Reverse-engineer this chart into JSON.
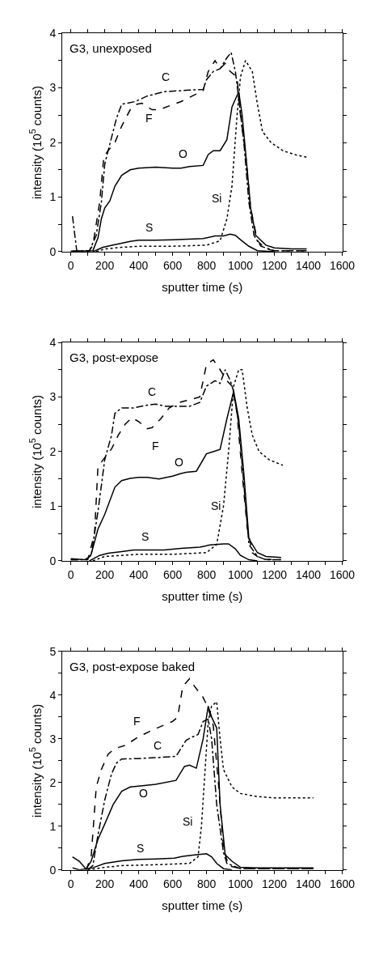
{
  "chart_data": [
    {
      "type": "line",
      "xlabel": "sputter time (s)",
      "ylabel": "intensity (10$^{5}$ counts)",
      "xlim": [
        -50,
        1600
      ],
      "ylim": [
        0,
        4
      ],
      "xticks": [
        0,
        {
          "value": 100,
          "label": null
        },
        200,
        {
          "value": 300,
          "label": null
        },
        400,
        {
          "value": 500,
          "label": null
        },
        600,
        {
          "value": 700,
          "label": null
        },
        800,
        {
          "value": 900,
          "label": null
        },
        1000,
        {
          "value": 1100,
          "label": null
        },
        1200,
        {
          "value": 1300,
          "label": null
        },
        1400,
        {
          "value": 1500,
          "label": null
        },
        1600
      ],
      "yticks": [
        0,
        {
          "value": 0.5,
          "label": null
        },
        1,
        {
          "value": 1.5,
          "label": null
        },
        2,
        {
          "value": 2.5,
          "label": null
        },
        3,
        {
          "value": 3.5,
          "label": null
        },
        4
      ],
      "legend": false,
      "marker": "none",
      "annotations": [
        "G3, unexposed"
      ],
      "series": [
        {
          "name": "O",
          "color": "#000000",
          "line_style": "solid",
          "x": [
            0,
            130,
            160,
            180,
            200,
            230,
            260,
            300,
            350,
            400,
            500,
            600,
            650,
            700,
            780,
            810,
            840,
            880,
            920,
            950,
            990,
            1010,
            1040,
            1060,
            1090,
            1150,
            1200,
            1300,
            1390
          ],
          "values": [
            0.01,
            0.02,
            0.25,
            0.6,
            0.8,
            0.93,
            1.2,
            1.4,
            1.5,
            1.53,
            1.55,
            1.53,
            1.53,
            1.56,
            1.58,
            1.78,
            1.85,
            1.85,
            2.05,
            2.65,
            2.93,
            2.5,
            1.5,
            0.8,
            0.3,
            0.12,
            0.07,
            0.05,
            0.05
          ]
        },
        {
          "name": "C",
          "color": "#000000",
          "line_style": "dashdot",
          "x": [
            10,
            35,
            110,
            150,
            180,
            200,
            220,
            270,
            300,
            380,
            450,
            550,
            700,
            780,
            800,
            840,
            880,
            920,
            945,
            970,
            990,
            1020,
            1050,
            1080,
            1120,
            1200,
            1390
          ],
          "values": [
            0.65,
            0.02,
            0.02,
            0.3,
            0.9,
            1.6,
            1.85,
            2.45,
            2.7,
            2.75,
            2.85,
            2.93,
            2.96,
            2.97,
            3.15,
            3.3,
            3.35,
            3.55,
            3.65,
            3.3,
            2.8,
            2.0,
            0.9,
            0.3,
            0.1,
            0.02,
            0.02
          ]
        },
        {
          "name": "F",
          "color": "#000000",
          "line_style": "dashed",
          "x": [
            10,
            110,
            130,
            170,
            195,
            220,
            260,
            300,
            350,
            390,
            420,
            450,
            480,
            520,
            650,
            780,
            810,
            850,
            880,
            910,
            940,
            980,
            1000,
            1030,
            1060,
            1100,
            1150,
            1200,
            1390
          ],
          "values": [
            0.01,
            0.02,
            0.12,
            0.9,
            1.75,
            1.85,
            2.0,
            2.3,
            2.6,
            2.7,
            2.72,
            2.65,
            2.6,
            2.6,
            2.75,
            2.95,
            3.3,
            3.5,
            3.35,
            3.45,
            3.3,
            3.2,
            2.5,
            1.8,
            0.8,
            0.2,
            0.05,
            0.02,
            0.02
          ]
        },
        {
          "name": "Si",
          "color": "#000000",
          "line_style": "dotted",
          "x": [
            150,
            200,
            300,
            400,
            600,
            800,
            880,
            920,
            950,
            980,
            1000,
            1030,
            1070,
            1100,
            1130,
            1180,
            1250,
            1330,
            1390
          ],
          "values": [
            0.0,
            0.05,
            0.08,
            0.1,
            0.1,
            0.12,
            0.2,
            0.6,
            1.2,
            2.5,
            3.2,
            3.5,
            3.3,
            2.7,
            2.2,
            2.0,
            1.85,
            1.77,
            1.73
          ]
        },
        {
          "name": "S",
          "color": "#000000",
          "line_style": "solid",
          "x": [
            130,
            190,
            260,
            350,
            400,
            500,
            600,
            780,
            850,
            900,
            940,
            970,
            1000,
            1050,
            1100,
            1200
          ],
          "values": [
            0.0,
            0.08,
            0.13,
            0.19,
            0.21,
            0.21,
            0.22,
            0.24,
            0.29,
            0.29,
            0.32,
            0.3,
            0.22,
            0.1,
            0.02,
            0.0
          ]
        }
      ]
    },
    {
      "type": "line",
      "xlabel": "sputter time (s)",
      "ylabel": "intensity (10$^{5}$ counts)",
      "xlim": [
        -50,
        1600
      ],
      "ylim": [
        0,
        4
      ],
      "xticks": [
        0,
        {
          "value": 100,
          "label": null
        },
        200,
        {
          "value": 300,
          "label": null
        },
        400,
        {
          "value": 500,
          "label": null
        },
        600,
        {
          "value": 700,
          "label": null
        },
        800,
        {
          "value": 900,
          "label": null
        },
        1000,
        {
          "value": 1100,
          "label": null
        },
        1200,
        {
          "value": 1300,
          "label": null
        },
        1400,
        {
          "value": 1500,
          "label": null
        },
        1600
      ],
      "yticks": [
        0,
        {
          "value": 0.5,
          "label": null
        },
        1,
        {
          "value": 1.5,
          "label": null
        },
        2,
        {
          "value": 2.5,
          "label": null
        },
        3,
        {
          "value": 3.5,
          "label": null
        },
        4
      ],
      "legend": false,
      "marker": "none",
      "annotations": [
        "G3, post-expose"
      ],
      "series": [
        {
          "name": "O",
          "color": "#000000",
          "line_style": "solid",
          "x": [
            0,
            80,
            100,
            120,
            160,
            200,
            260,
            300,
            350,
            400,
            450,
            520,
            600,
            650,
            680,
            740,
            800,
            840,
            880,
            920,
            960,
            990,
            1020,
            1050,
            1100,
            1150,
            1240
          ],
          "values": [
            0.04,
            0.02,
            0.05,
            0.12,
            0.58,
            0.85,
            1.35,
            1.47,
            1.51,
            1.53,
            1.53,
            1.5,
            1.55,
            1.6,
            1.62,
            1.64,
            1.96,
            2.0,
            2.04,
            2.6,
            3.1,
            2.6,
            1.6,
            0.4,
            0.15,
            0.08,
            0.06
          ]
        },
        {
          "name": "C",
          "color": "#000000",
          "line_style": "dashdot",
          "x": [
            0,
            90,
            120,
            160,
            200,
            240,
            260,
            300,
            370,
            450,
            500,
            560,
            600,
            700,
            760,
            800,
            850,
            880,
            910,
            940,
            960,
            990,
            1020,
            1050,
            1100,
            1150,
            1240
          ],
          "values": [
            0.02,
            0.02,
            0.1,
            0.9,
            1.85,
            2.3,
            2.7,
            2.8,
            2.8,
            2.85,
            2.87,
            2.83,
            2.83,
            2.83,
            2.9,
            3.2,
            3.3,
            3.25,
            3.5,
            3.3,
            3.1,
            2.5,
            1.4,
            0.3,
            0.08,
            0.02,
            0.02
          ]
        },
        {
          "name": "F",
          "color": "#000000",
          "line_style": "dashed",
          "x": [
            0,
            100,
            140,
            160,
            190,
            240,
            280,
            320,
            360,
            400,
            450,
            480,
            530,
            580,
            640,
            700,
            760,
            800,
            840,
            880,
            920,
            950,
            980,
            1010,
            1040,
            1070,
            1120,
            1240
          ],
          "values": [
            0.02,
            0.02,
            0.5,
            1.72,
            1.85,
            2.05,
            2.3,
            2.5,
            2.62,
            2.55,
            2.42,
            2.44,
            2.6,
            2.8,
            2.9,
            2.95,
            3.0,
            3.6,
            3.68,
            3.5,
            3.3,
            3.2,
            2.7,
            1.6,
            0.6,
            0.15,
            0.03,
            0.02
          ]
        },
        {
          "name": "Si",
          "color": "#000000",
          "line_style": "dotted",
          "x": [
            130,
            200,
            300,
            400,
            600,
            800,
            860,
            900,
            930,
            960,
            990,
            1010,
            1040,
            1070,
            1110,
            1170,
            1250
          ],
          "values": [
            0.0,
            0.08,
            0.1,
            0.12,
            0.12,
            0.15,
            0.3,
            1.0,
            2.0,
            3.2,
            3.5,
            3.5,
            2.8,
            2.3,
            2.0,
            1.85,
            1.75
          ]
        },
        {
          "name": "S",
          "color": "#000000",
          "line_style": "solid",
          "x": [
            110,
            170,
            220,
            300,
            370,
            450,
            550,
            650,
            760,
            820,
            900,
            930,
            970,
            1000,
            1050,
            1100
          ],
          "values": [
            0.0,
            0.1,
            0.14,
            0.17,
            0.2,
            0.2,
            0.2,
            0.23,
            0.25,
            0.29,
            0.31,
            0.31,
            0.22,
            0.1,
            0.02,
            0.0
          ]
        }
      ]
    },
    {
      "type": "line",
      "xlabel": "sputter time (s)",
      "ylabel": "intensity (10$^{5}$ counts)",
      "xlim": [
        -50,
        1600
      ],
      "ylim": [
        0,
        5
      ],
      "xticks": [
        0,
        {
          "value": 100,
          "label": null
        },
        200,
        {
          "value": 300,
          "label": null
        },
        400,
        {
          "value": 500,
          "label": null
        },
        600,
        {
          "value": 700,
          "label": null
        },
        800,
        {
          "value": 900,
          "label": null
        },
        1000,
        {
          "value": 1100,
          "label": null
        },
        1200,
        {
          "value": 1300,
          "label": null
        },
        1400,
        {
          "value": 1500,
          "label": null
        },
        1600
      ],
      "yticks": [
        0,
        {
          "value": 0.5,
          "label": null
        },
        1,
        {
          "value": 1.5,
          "label": null
        },
        2,
        {
          "value": 2.5,
          "label": null
        },
        3,
        {
          "value": 3.5,
          "label": null
        },
        4,
        {
          "value": 4.5,
          "label": null
        },
        5
      ],
      "legend": false,
      "marker": "none",
      "annotations": [
        "G3, post-expose baked"
      ],
      "series": [
        {
          "name": "O",
          "color": "#000000",
          "line_style": "solid",
          "x": [
            10,
            50,
            90,
            120,
            160,
            200,
            250,
            300,
            350,
            400,
            500,
            620,
            670,
            700,
            740,
            780,
            810,
            830,
            860,
            880,
            910,
            950,
            1000,
            1100,
            1430
          ],
          "values": [
            0.3,
            0.2,
            0.02,
            0.2,
            0.7,
            1.05,
            1.5,
            1.8,
            1.9,
            1.92,
            1.96,
            2.05,
            2.37,
            2.4,
            2.33,
            3.0,
            3.75,
            3.5,
            3.25,
            1.5,
            0.35,
            0.2,
            0.06,
            0.05,
            0.05
          ]
        },
        {
          "name": "C",
          "color": "#000000",
          "line_style": "dashdot",
          "x": [
            100,
            130,
            160,
            200,
            240,
            270,
            300,
            400,
            500,
            620,
            680,
            720,
            750,
            780,
            810,
            830,
            860,
            900,
            920,
            1000,
            1430
          ],
          "values": [
            0.0,
            0.1,
            0.8,
            1.6,
            2.2,
            2.45,
            2.54,
            2.55,
            2.57,
            2.6,
            2.97,
            3.05,
            3.1,
            3.4,
            3.45,
            3.0,
            1.5,
            0.4,
            0.15,
            0.03,
            0.03
          ]
        },
        {
          "name": "F",
          "color": "#000000",
          "line_style": "dashed",
          "x": [
            90,
            120,
            150,
            180,
            220,
            260,
            320,
            400,
            480,
            600,
            630,
            660,
            700,
            730,
            780,
            810,
            840,
            870,
            900,
            930,
            1000,
            1430
          ],
          "values": [
            0.0,
            0.3,
            1.9,
            2.3,
            2.65,
            2.78,
            2.85,
            3.05,
            3.2,
            3.4,
            3.5,
            4.2,
            4.38,
            4.2,
            3.95,
            3.7,
            3.3,
            2.0,
            0.5,
            0.1,
            0.03,
            0.03
          ]
        },
        {
          "name": "Si",
          "color": "#000000",
          "line_style": "dotted",
          "x": [
            100,
            150,
            200,
            300,
            500,
            700,
            750,
            770,
            790,
            810,
            830,
            860,
            880,
            900,
            950,
            1000,
            1100,
            1200,
            1430
          ],
          "values": [
            0.0,
            0.03,
            0.06,
            0.1,
            0.12,
            0.15,
            0.3,
            1.0,
            2.2,
            3.4,
            3.75,
            3.85,
            3.0,
            2.3,
            1.9,
            1.75,
            1.68,
            1.65,
            1.65
          ]
        },
        {
          "name": "S",
          "color": "#000000",
          "line_style": "solid",
          "x": [
            10,
            50,
            130,
            200,
            300,
            400,
            500,
            610,
            660,
            740,
            800,
            830,
            860,
            900,
            950
          ],
          "values": [
            0.05,
            0.0,
            0.05,
            0.15,
            0.21,
            0.24,
            0.25,
            0.27,
            0.31,
            0.35,
            0.37,
            0.3,
            0.15,
            0.03,
            0.0
          ]
        }
      ]
    }
  ]
}
